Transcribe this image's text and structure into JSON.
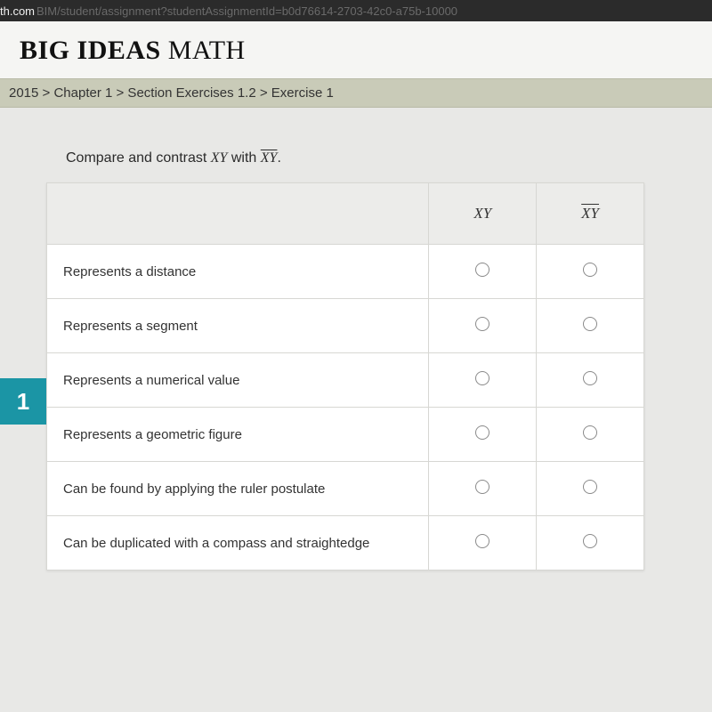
{
  "browser": {
    "url_domain": "th.com",
    "url_rest": "BIM/student/assignment?studentAssignmentId=b0d76614-2703-42c0-a75b-10000"
  },
  "logo": {
    "bold": "BIG IDEAS",
    "thin": " MATH"
  },
  "breadcrumb": "2015 > Chapter 1 > Section Exercises 1.2 > Exercise 1",
  "question": {
    "number": "1",
    "prompt_prefix": "Compare and contrast ",
    "sym_plain": "XY",
    "prompt_mid": " with ",
    "sym_bar": "XY",
    "prompt_suffix": "."
  },
  "table": {
    "col1": "XY",
    "col2": "XY",
    "rows": [
      {
        "label": "Represents a distance"
      },
      {
        "label": "Represents a segment"
      },
      {
        "label": "Represents a numerical value"
      },
      {
        "label": "Represents a geometric figure"
      },
      {
        "label": "Can be found by applying the ruler postulate"
      },
      {
        "label": "Can be duplicated with a compass and straightedge"
      }
    ]
  },
  "colors": {
    "qnum_bg": "#1b95a5",
    "breadcrumb_bg": "#c9cbb8",
    "table_header_bg": "#ececea",
    "border": "#d7d7d3"
  }
}
